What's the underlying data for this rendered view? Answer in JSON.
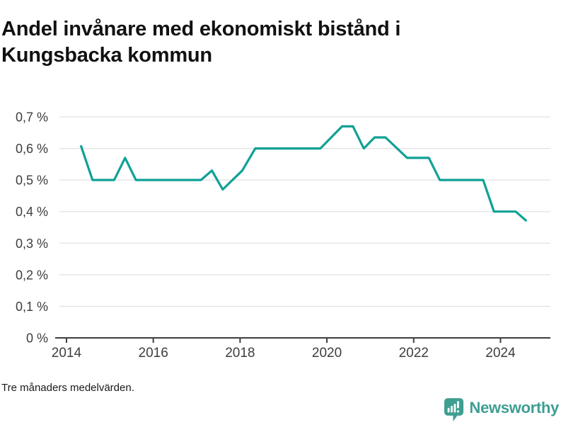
{
  "header": {
    "title": "Andel invånare med ekonomiskt bistånd i Kungsbacka kommun"
  },
  "footer": {
    "note": "Tre månaders medelvärden.",
    "brand": "Newsworthy"
  },
  "colors": {
    "line": "#0FA195",
    "brand": "#3F9E92",
    "grid": "#E2E2E2",
    "axis": "#3F3F3F",
    "tick_text": "#3D3D3D",
    "title_text": "#111111"
  },
  "chart_data": {
    "type": "line",
    "title": "Andel invånare med ekonomiskt bistånd i Kungsbacka kommun",
    "footnote": "Tre månaders medelvärden.",
    "xlabel": "",
    "ylabel": "",
    "unit": "%",
    "grid": "horizontal",
    "legend": "none",
    "x_range": [
      2013.74,
      2025.15
    ],
    "y_range": [
      0,
      0.7
    ],
    "x_ticks": [
      2014,
      2016,
      2018,
      2020,
      2022,
      2024
    ],
    "y_ticks": [
      0,
      0.1,
      0.2,
      0.3,
      0.4,
      0.5,
      0.6,
      0.7
    ],
    "y_tick_labels": [
      "0 %",
      "0,1 %",
      "0,2 %",
      "0,3 %",
      "0,4 %",
      "0,5 %",
      "0,6 %",
      "0,7 %"
    ],
    "series": [
      {
        "name": "Andel invånare med ekonomiskt bistånd",
        "color": "#0FA195",
        "points": [
          [
            2014.33,
            0.61
          ],
          [
            2014.6,
            0.5
          ],
          [
            2015.1,
            0.5
          ],
          [
            2015.35,
            0.57
          ],
          [
            2015.6,
            0.5
          ],
          [
            2017.1,
            0.5
          ],
          [
            2017.35,
            0.53
          ],
          [
            2017.6,
            0.47
          ],
          [
            2018.05,
            0.53
          ],
          [
            2018.35,
            0.6
          ],
          [
            2019.85,
            0.6
          ],
          [
            2020.35,
            0.67
          ],
          [
            2020.6,
            0.67
          ],
          [
            2020.85,
            0.6
          ],
          [
            2021.1,
            0.635
          ],
          [
            2021.35,
            0.635
          ],
          [
            2021.85,
            0.57
          ],
          [
            2022.35,
            0.57
          ],
          [
            2022.6,
            0.5
          ],
          [
            2023.6,
            0.5
          ],
          [
            2023.85,
            0.4
          ],
          [
            2024.35,
            0.4
          ],
          [
            2024.6,
            0.37
          ]
        ]
      }
    ]
  }
}
